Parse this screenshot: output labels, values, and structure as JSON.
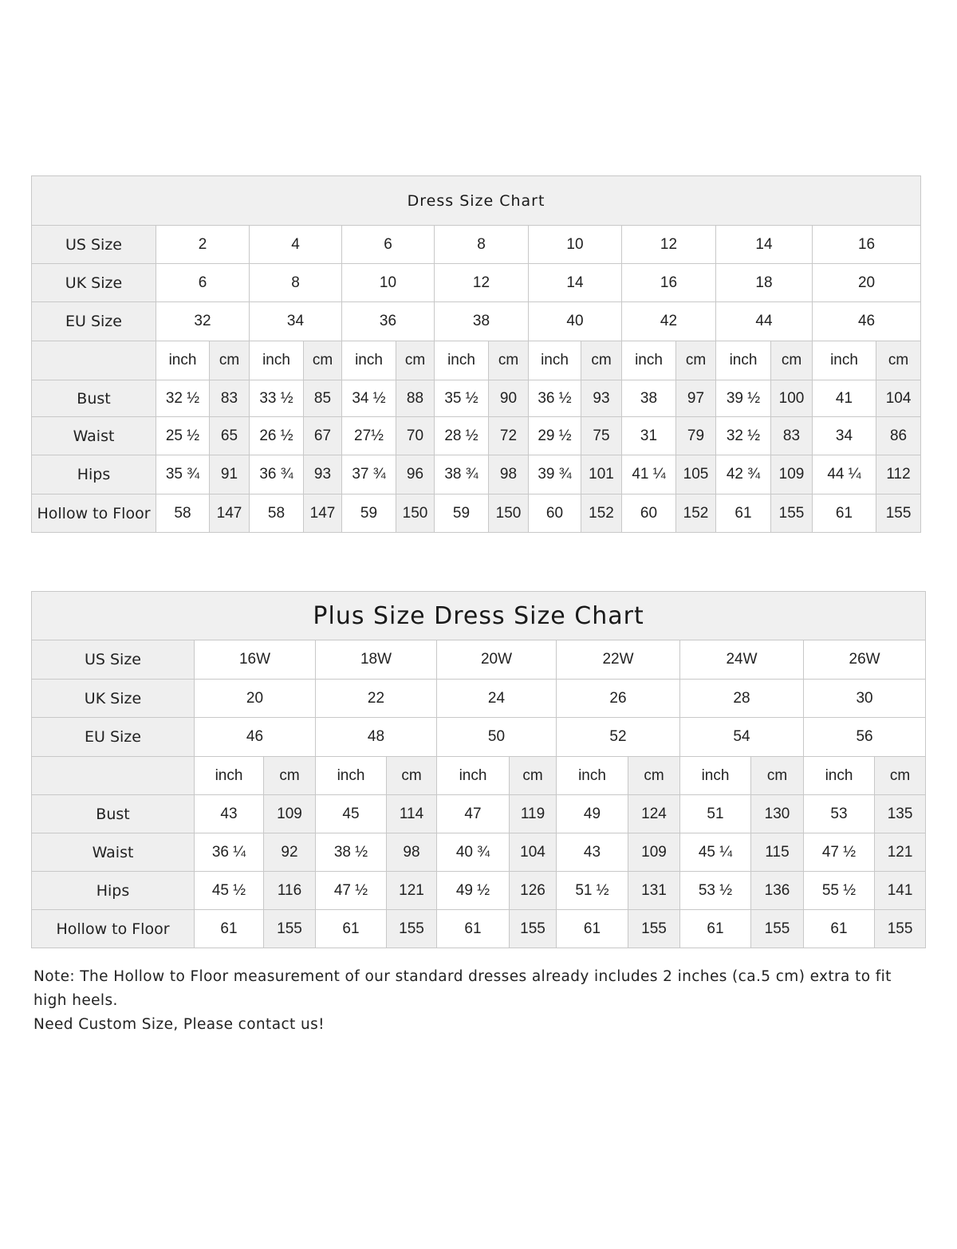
{
  "standard": {
    "title": "Dress Size Chart",
    "row_labels": {
      "us": "US Size",
      "uk": "UK Size",
      "eu": "EU Size",
      "unit": "",
      "bust": "Bust",
      "waist": "Waist",
      "hips": "Hips",
      "hollow": "Hollow to Floor"
    },
    "units": [
      "inch",
      "cm"
    ],
    "us": [
      "2",
      "4",
      "6",
      "8",
      "10",
      "12",
      "14",
      "16"
    ],
    "uk": [
      "6",
      "8",
      "10",
      "12",
      "14",
      "16",
      "18",
      "20"
    ],
    "eu": [
      "32",
      "34",
      "36",
      "38",
      "40",
      "42",
      "44",
      "46"
    ],
    "bust": [
      [
        "32 ½",
        "83"
      ],
      [
        "33 ½",
        "85"
      ],
      [
        "34 ½",
        "88"
      ],
      [
        "35 ½",
        "90"
      ],
      [
        "36 ½",
        "93"
      ],
      [
        "38",
        "97"
      ],
      [
        "39 ½",
        "100"
      ],
      [
        "41",
        "104"
      ]
    ],
    "waist": [
      [
        "25 ½",
        "65"
      ],
      [
        "26 ½",
        "67"
      ],
      [
        "27½",
        "70"
      ],
      [
        "28 ½",
        "72"
      ],
      [
        "29 ½",
        "75"
      ],
      [
        "31",
        "79"
      ],
      [
        "32 ½",
        "83"
      ],
      [
        "34",
        "86"
      ]
    ],
    "hips": [
      [
        "35 ¾",
        "91"
      ],
      [
        "36 ¾",
        "93"
      ],
      [
        "37 ¾",
        "96"
      ],
      [
        "38 ¾",
        "98"
      ],
      [
        "39 ¾",
        "101"
      ],
      [
        "41 ¼",
        "105"
      ],
      [
        "42 ¾",
        "109"
      ],
      [
        "44 ¼",
        "112"
      ]
    ],
    "hollow": [
      [
        "58",
        "147"
      ],
      [
        "58",
        "147"
      ],
      [
        "59",
        "150"
      ],
      [
        "59",
        "150"
      ],
      [
        "60",
        "152"
      ],
      [
        "60",
        "152"
      ],
      [
        "61",
        "155"
      ],
      [
        "61",
        "155"
      ]
    ]
  },
  "plus": {
    "title": "Plus Size Dress Size Chart",
    "row_labels": {
      "us": "US Size",
      "uk": "UK Size",
      "eu": "EU Size",
      "unit": "",
      "bust": "Bust",
      "waist": "Waist",
      "hips": "Hips",
      "hollow": "Hollow to Floor"
    },
    "units": [
      "inch",
      "cm"
    ],
    "us": [
      "16W",
      "18W",
      "20W",
      "22W",
      "24W",
      "26W"
    ],
    "uk": [
      "20",
      "22",
      "24",
      "26",
      "28",
      "30"
    ],
    "eu": [
      "46",
      "48",
      "50",
      "52",
      "54",
      "56"
    ],
    "bust": [
      [
        "43",
        "109"
      ],
      [
        "45",
        "114"
      ],
      [
        "47",
        "119"
      ],
      [
        "49",
        "124"
      ],
      [
        "51",
        "130"
      ],
      [
        "53",
        "135"
      ]
    ],
    "waist": [
      [
        "36 ¼",
        "92"
      ],
      [
        "38 ½",
        "98"
      ],
      [
        "40 ¾",
        "104"
      ],
      [
        "43",
        "109"
      ],
      [
        "45 ¼",
        "115"
      ],
      [
        "47 ½",
        "121"
      ]
    ],
    "hips": [
      [
        "45 ½",
        "116"
      ],
      [
        "47 ½",
        "121"
      ],
      [
        "49 ½",
        "126"
      ],
      [
        "51 ½",
        "131"
      ],
      [
        "53 ½",
        "136"
      ],
      [
        "55 ½",
        "141"
      ]
    ],
    "hollow": [
      [
        "61",
        "155"
      ],
      [
        "61",
        "155"
      ],
      [
        "61",
        "155"
      ],
      [
        "61",
        "155"
      ],
      [
        "61",
        "155"
      ],
      [
        "61",
        "155"
      ]
    ]
  },
  "note": {
    "line1": "Note: The Hollow to Floor measurement of our standard dresses already includes 2 inches (ca.5 cm) extra to fit high heels.",
    "line2": "Need Custom Size, Please contact us!"
  }
}
